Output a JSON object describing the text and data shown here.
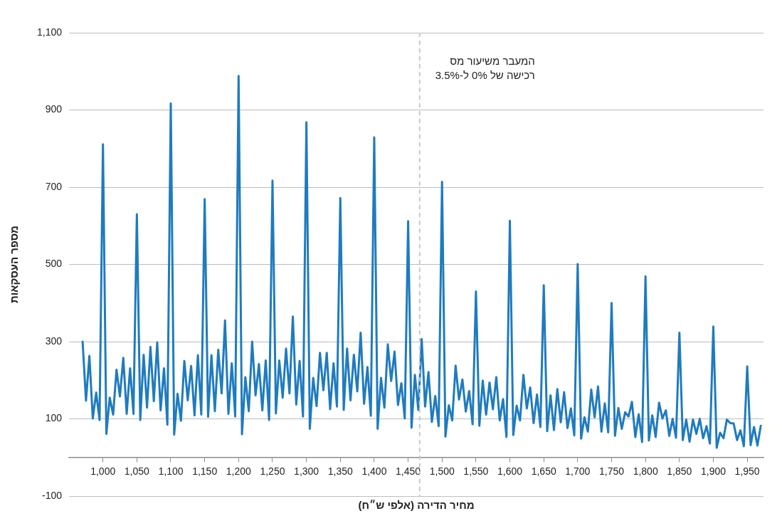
{
  "chart_data": {
    "type": "line",
    "xlabel": "מחיר הדירה (אלפי ש״ח)",
    "ylabel": "מספר העסקאות",
    "x": [
      970,
      975,
      980,
      985,
      990,
      995,
      1000,
      1005,
      1010,
      1015,
      1020,
      1025,
      1030,
      1035,
      1040,
      1045,
      1050,
      1055,
      1060,
      1065,
      1070,
      1075,
      1080,
      1085,
      1090,
      1095,
      1100,
      1105,
      1110,
      1115,
      1120,
      1125,
      1130,
      1135,
      1140,
      1145,
      1150,
      1155,
      1160,
      1165,
      1170,
      1175,
      1180,
      1185,
      1190,
      1195,
      1200,
      1205,
      1210,
      1215,
      1220,
      1225,
      1230,
      1235,
      1240,
      1245,
      1250,
      1255,
      1260,
      1265,
      1270,
      1275,
      1280,
      1285,
      1290,
      1295,
      1300,
      1305,
      1310,
      1315,
      1320,
      1325,
      1330,
      1335,
      1340,
      1345,
      1350,
      1355,
      1360,
      1365,
      1370,
      1375,
      1380,
      1385,
      1390,
      1395,
      1400,
      1405,
      1410,
      1415,
      1420,
      1425,
      1430,
      1435,
      1440,
      1445,
      1450,
      1455,
      1460,
      1465,
      1470,
      1475,
      1480,
      1485,
      1490,
      1495,
      1500,
      1505,
      1510,
      1515,
      1520,
      1525,
      1530,
      1535,
      1540,
      1545,
      1550,
      1555,
      1560,
      1565,
      1570,
      1575,
      1580,
      1585,
      1590,
      1595,
      1600,
      1605,
      1610,
      1615,
      1620,
      1625,
      1630,
      1635,
      1640,
      1645,
      1650,
      1655,
      1660,
      1665,
      1670,
      1675,
      1680,
      1685,
      1690,
      1695,
      1700,
      1705,
      1710,
      1715,
      1720,
      1725,
      1730,
      1735,
      1740,
      1745,
      1750,
      1755,
      1760,
      1765,
      1770,
      1775,
      1780,
      1785,
      1790,
      1795,
      1800,
      1805,
      1810,
      1815,
      1820,
      1825,
      1830,
      1835,
      1840,
      1845,
      1850,
      1855,
      1860,
      1865,
      1870,
      1875,
      1880,
      1885,
      1890,
      1895,
      1900,
      1905,
      1910,
      1915,
      1920,
      1925,
      1930,
      1935,
      1940,
      1945,
      1950,
      1955,
      1960,
      1965,
      1970
    ],
    "values": [
      300,
      147,
      263,
      101,
      168,
      97,
      811,
      61,
      155,
      111,
      227,
      158,
      258,
      113,
      231,
      113,
      630,
      97,
      266,
      129,
      286,
      146,
      298,
      122,
      231,
      85,
      917,
      59,
      165,
      95,
      250,
      148,
      237,
      109,
      265,
      111,
      669,
      105,
      265,
      120,
      279,
      166,
      355,
      113,
      244,
      106,
      988,
      60,
      208,
      120,
      300,
      161,
      242,
      122,
      251,
      97,
      717,
      114,
      251,
      155,
      282,
      166,
      365,
      137,
      250,
      106,
      868,
      74,
      206,
      133,
      271,
      174,
      271,
      125,
      244,
      132,
      672,
      123,
      282,
      148,
      266,
      171,
      323,
      139,
      234,
      108,
      829,
      74,
      206,
      129,
      293,
      198,
      274,
      136,
      192,
      101,
      612,
      77,
      214,
      123,
      307,
      132,
      221,
      92,
      159,
      81,
      714,
      54,
      135,
      96,
      238,
      150,
      202,
      119,
      172,
      86,
      430,
      82,
      199,
      111,
      194,
      125,
      208,
      96,
      151,
      53,
      613,
      58,
      134,
      96,
      214,
      127,
      181,
      89,
      163,
      79,
      446,
      68,
      161,
      71,
      177,
      91,
      169,
      76,
      127,
      57,
      501,
      49,
      104,
      67,
      176,
      104,
      184,
      67,
      140,
      65,
      400,
      56,
      128,
      74,
      117,
      106,
      144,
      53,
      112,
      40,
      469,
      44,
      109,
      53,
      142,
      101,
      122,
      56,
      100,
      51,
      323,
      45,
      98,
      41,
      98,
      61,
      100,
      50,
      81,
      36,
      339,
      25,
      64,
      50,
      98,
      89,
      88,
      45,
      70,
      29,
      236,
      32,
      79,
      31,
      82
    ],
    "color": "#1f7bbf",
    "marker": "none",
    "line_style": "solid",
    "legend": false,
    "grid": "y",
    "xlim": [
      950,
      1974
    ],
    "xticks": [
      {
        "value": 1000,
        "label": "1,000"
      },
      {
        "value": 1050,
        "label": "1,050"
      },
      {
        "value": 1100,
        "label": "1,100"
      },
      {
        "value": 1150,
        "label": "1,150"
      },
      {
        "value": 1200,
        "label": "1,200"
      },
      {
        "value": 1250,
        "label": "1,250"
      },
      {
        "value": 1300,
        "label": "1,300"
      },
      {
        "value": 1350,
        "label": "1,350"
      },
      {
        "value": 1400,
        "label": "1,400"
      },
      {
        "value": 1450,
        "label": "1,450"
      },
      {
        "value": 1500,
        "label": "1,500"
      },
      {
        "value": 1550,
        "label": "1,550"
      },
      {
        "value": 1600,
        "label": "1,600"
      },
      {
        "value": 1650,
        "label": "1,650"
      },
      {
        "value": 1700,
        "label": "1,700"
      },
      {
        "value": 1750,
        "label": "1,750"
      },
      {
        "value": 1800,
        "label": "1,800"
      },
      {
        "value": 1850,
        "label": "1,850"
      },
      {
        "value": 1900,
        "label": "1,900"
      },
      {
        "value": 1950,
        "label": "1,950"
      }
    ],
    "ylim": [
      -100,
      1100
    ],
    "yticks": [
      -100,
      100,
      300,
      500,
      700,
      900,
      {
        "value": 1100,
        "label": "1,100"
      }
    ],
    "ref_lines": [
      {
        "axis": "x",
        "value": 1467,
        "label": "המעבר משיעור מס\nרכישה של 0% ל-3.5%",
        "color": "#c8c8c8",
        "line_style": "dashed"
      }
    ]
  }
}
